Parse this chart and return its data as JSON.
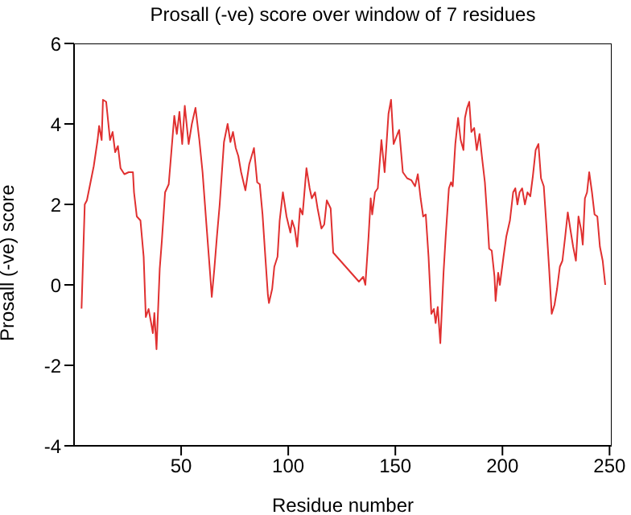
{
  "chart_data": {
    "type": "line",
    "title": "Prosall (-ve) score over window of 7 residues",
    "xlabel": "Residue number",
    "ylabel": "Prosall (-ve) score",
    "x": [
      3.5,
      5,
      6,
      9.2,
      11,
      11.7,
      12.9,
      13.5,
      15,
      16.8,
      18,
      19.2,
      20.5,
      21.7,
      23.5,
      25.5,
      27.5,
      28,
      29.3,
      31,
      32.5,
      33.5,
      34.8,
      36,
      36.8,
      37.5,
      38.5,
      40,
      41,
      42.5,
      44.2,
      45.5,
      46.8,
      48,
      49.2,
      50.5,
      51.7,
      53.5,
      55,
      56.7,
      58.5,
      60,
      61.8,
      63.5,
      64.3,
      65.5,
      66.7,
      68,
      70,
      71.7,
      73,
      74.2,
      75.5,
      76.7,
      78,
      80,
      81.8,
      84,
      85.5,
      86.7,
      88,
      89.3,
      90.5,
      91,
      92.5,
      93.5,
      95,
      96,
      97.5,
      99.2,
      101,
      101.8,
      103,
      104.2,
      105.5,
      106.7,
      108.5,
      110,
      111,
      112.5,
      113.7,
      115.5,
      116.8,
      118,
      119.8,
      121,
      133,
      135,
      136,
      137.5,
      138.5,
      139.2,
      140.5,
      141.8,
      143.5,
      145,
      146,
      146.8,
      148,
      149.2,
      151,
      151.8,
      153.5,
      155.5,
      157.5,
      159.2,
      160.5,
      161.8,
      163,
      164.2,
      165.5,
      166.8,
      168,
      168.8,
      169.8,
      171,
      172.5,
      173.5,
      175,
      176,
      176.8,
      178,
      179.3,
      180.5,
      181.8,
      182.5,
      183.5,
      184.5,
      185.5,
      186.8,
      188,
      189.3,
      190.5,
      191.8,
      193,
      193.8,
      195,
      196.3,
      196.8,
      198,
      198.8,
      200.5,
      201.8,
      203.5,
      205,
      206,
      207,
      208,
      209.2,
      210.5,
      211.7,
      213,
      214.2,
      215.5,
      216.8,
      218,
      219.3,
      220.5,
      221.8,
      223,
      224.3,
      225.5,
      226.8,
      228,
      229.3,
      230.5,
      231.8,
      233,
      234.3,
      235.5,
      236.8,
      237.5,
      238.5,
      239.5,
      240.5,
      241.8,
      243,
      244.3,
      245.5,
      246.8,
      248
    ],
    "series": [
      {
        "color": "#e03030",
        "values": [
          -0.59,
          2.0,
          2.1,
          2.95,
          3.6,
          3.95,
          3.6,
          4.6,
          4.55,
          3.6,
          3.8,
          3.3,
          3.45,
          2.9,
          2.75,
          2.8,
          2.8,
          2.3,
          1.7,
          1.6,
          0.7,
          -0.8,
          -0.6,
          -0.95,
          -1.2,
          -0.7,
          -1.6,
          0.4,
          1.1,
          2.3,
          2.5,
          3.35,
          4.2,
          3.75,
          4.3,
          3.5,
          4.45,
          3.5,
          4.0,
          4.4,
          3.6,
          2.8,
          1.5,
          0.3,
          -0.3,
          0.4,
          1.2,
          2.0,
          3.55,
          4.0,
          3.55,
          3.8,
          3.4,
          3.2,
          2.8,
          2.35,
          3.0,
          3.4,
          2.55,
          2.5,
          1.75,
          0.7,
          -0.25,
          -0.45,
          -0.1,
          0.45,
          0.7,
          1.6,
          2.3,
          1.7,
          1.3,
          1.6,
          1.4,
          0.95,
          1.9,
          1.75,
          2.9,
          2.4,
          2.15,
          2.3,
          1.9,
          1.4,
          1.5,
          2.1,
          1.9,
          0.8,
          0.08,
          0.2,
          0.0,
          1.2,
          2.15,
          1.75,
          2.3,
          2.4,
          3.6,
          2.8,
          3.6,
          4.25,
          4.6,
          3.5,
          3.75,
          3.85,
          2.8,
          2.65,
          2.6,
          2.45,
          2.75,
          2.15,
          1.7,
          1.75,
          0.7,
          -0.72,
          -0.6,
          -0.95,
          -0.55,
          -1.45,
          0.3,
          1.2,
          2.4,
          2.55,
          2.45,
          3.5,
          4.15,
          3.6,
          3.35,
          4.15,
          4.4,
          4.55,
          3.8,
          3.9,
          3.35,
          3.75,
          3.15,
          2.55,
          1.6,
          0.9,
          0.85,
          0.2,
          -0.4,
          0.3,
          0.0,
          0.7,
          1.2,
          1.6,
          2.3,
          2.4,
          2.0,
          2.3,
          2.4,
          2.0,
          2.3,
          2.2,
          2.7,
          3.35,
          3.5,
          2.65,
          2.45,
          1.5,
          0.4,
          -0.72,
          -0.5,
          -0.1,
          0.45,
          0.6,
          1.2,
          1.8,
          1.35,
          0.95,
          0.6,
          1.7,
          1.35,
          1.0,
          2.15,
          2.3,
          2.8,
          2.3,
          1.75,
          1.7,
          0.95,
          0.6,
          0.0
        ]
      }
    ],
    "xlim": [
      0,
      251
    ],
    "xticks": [
      50,
      100,
      150,
      200,
      250
    ],
    "ylim": [
      -4,
      6
    ],
    "yticks": [
      -4,
      -2,
      0,
      2,
      4,
      6
    ],
    "grid": false,
    "legend": false,
    "marker": "none",
    "line_style": "solid"
  }
}
